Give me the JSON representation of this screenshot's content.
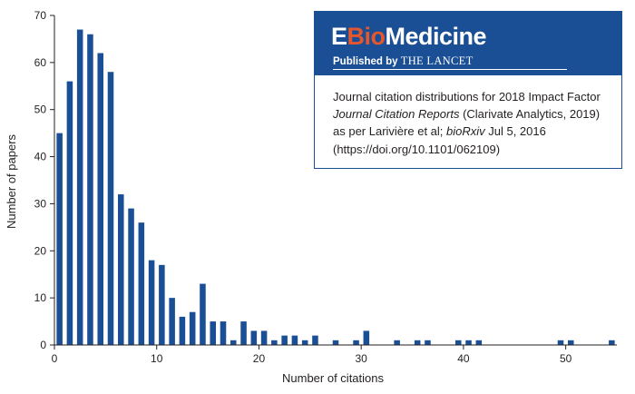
{
  "chart_data": {
    "type": "bar",
    "title": "",
    "xlabel": "Number of citations",
    "ylabel": "Number of papers",
    "xlim": [
      0,
      55
    ],
    "ylim": [
      0,
      70
    ],
    "xticks": [
      "0",
      "10",
      "20",
      "30",
      "40",
      "50"
    ],
    "yticks": [
      "0",
      "10",
      "20",
      "30",
      "40",
      "50",
      "60",
      "70"
    ],
    "grid": false,
    "x": [
      0,
      1,
      2,
      3,
      4,
      5,
      6,
      7,
      8,
      9,
      10,
      11,
      12,
      13,
      14,
      15,
      16,
      17,
      18,
      19,
      20,
      21,
      22,
      23,
      24,
      25,
      27,
      29,
      30,
      33,
      35,
      36,
      39,
      40,
      41,
      49,
      50,
      54
    ],
    "values": [
      45,
      56,
      67,
      66,
      62,
      58,
      32,
      29,
      26,
      18,
      17,
      10,
      6,
      7,
      13,
      5,
      5,
      1,
      5,
      3,
      3,
      1,
      2,
      2,
      1,
      2,
      1,
      1,
      3,
      1,
      1,
      1,
      1,
      1,
      1,
      1,
      1,
      1
    ],
    "color": "#1a4f95"
  },
  "infobox": {
    "logo_e": "E",
    "logo_bio": "Bio",
    "logo_medicine": "Medicine",
    "published_by": "Published by",
    "publisher": "THE LANCET",
    "caption_line1": "Journal citation distributions for 2018 Impact Factor",
    "caption_line2_italic": "Journal Citation Reports",
    "caption_line2_rest": " (Clarivate Analytics, 2019)",
    "caption_line3_start": "as per Larivière et al; ",
    "caption_line3_italic": "bioRxiv",
    "caption_line3_end": " Jul 5, 2016",
    "doi": "(https://doi.org/10.1101/062109)",
    "brand_color": "#1a4f95",
    "accent_color": "#e4572e"
  }
}
